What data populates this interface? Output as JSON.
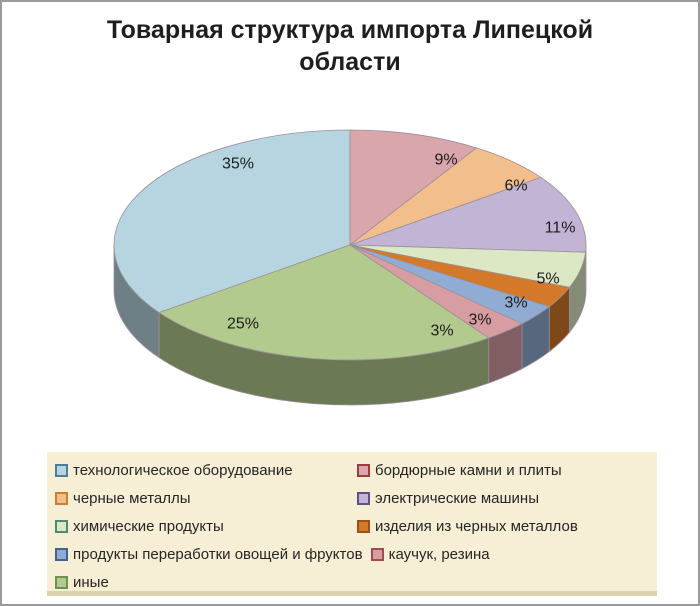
{
  "chart_data": {
    "type": "pie",
    "style": "3d-pie",
    "title": "Товарная структура импорта Липецкой области",
    "legend_position": "bottom",
    "legend_bg": "#F7EED6",
    "start_angle_deg": 234,
    "series": [
      {
        "label": "технологическое оборудование",
        "value": 35,
        "value_label": "35%",
        "color": "#B7D5E0",
        "border": "#4E7F96"
      },
      {
        "label": "бордюрные камни и плиты",
        "value": 9,
        "value_label": "9%",
        "color": "#D9A7AB",
        "border": "#9E3B3F"
      },
      {
        "label": "черные металлы",
        "value": 6,
        "value_label": "6%",
        "color": "#F2BE8C",
        "border": "#C9802E"
      },
      {
        "label": "электрические машины",
        "value": 11,
        "value_label": "11%",
        "color": "#C2B4D4",
        "border": "#5C5480"
      },
      {
        "label": "химические продукты",
        "value": 5,
        "value_label": "5%",
        "color": "#DCE8C4",
        "border": "#4E8A72"
      },
      {
        "label": "изделия из черных металлов",
        "value": 3,
        "value_label": "3%",
        "color": "#D4782A",
        "border": "#9C5216"
      },
      {
        "label": "продукты переработки овощей и фруктов",
        "value": 3,
        "value_label": "3%",
        "color": "#90ACD2",
        "border": "#44628F"
      },
      {
        "label": "каучук, резина",
        "value": 3,
        "value_label": "3%",
        "color": "#D79DA2",
        "border": "#A04A52"
      },
      {
        "label": "иные",
        "value": 25,
        "value_label": "25%",
        "color": "#B3CA8E",
        "border": "#6F8F4F"
      }
    ]
  }
}
